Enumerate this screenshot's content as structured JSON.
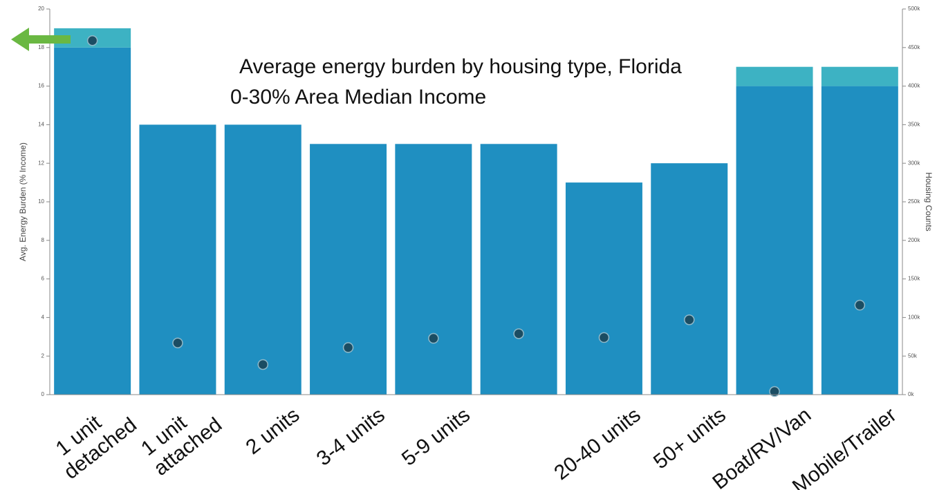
{
  "chart_data": {
    "type": "bar",
    "title": "Average energy burden by housing type, Florida",
    "subtitle": "0-30% Area Median Income",
    "y_label": "Avg. Energy Burden (% Income)",
    "y2_label": "Housing Counts",
    "categories": [
      "1 unit detached",
      "1 unit attached",
      "2 units",
      "3-4 units",
      "5-9 units",
      null,
      "20-40 units",
      "50+ units",
      "Boat/RV/Van",
      "Mobile/Trailer"
    ],
    "stacked": true,
    "series": [
      {
        "color": "#1f8fc1",
        "values": [
          18,
          14,
          14,
          13,
          13,
          13,
          11,
          12,
          16,
          16
        ]
      },
      {
        "color": "#3db2c3",
        "values": [
          1,
          0,
          0,
          0,
          0,
          0,
          0,
          0,
          1,
          1
        ]
      },
      {
        "type": "scatter",
        "axis": "y2",
        "color": "#1b4d63",
        "values": [
          459000,
          67000,
          39000,
          61000,
          73000,
          79000,
          74000,
          97000,
          4000,
          116000
        ]
      }
    ],
    "ylim": [
      0,
      20
    ],
    "yticks": [
      0,
      2,
      4,
      6,
      8,
      10,
      12,
      14,
      16,
      18,
      20
    ],
    "y2lim": [
      0,
      500000
    ],
    "y2ticks": [
      {
        "value": 0,
        "label": "0k"
      },
      {
        "value": 50000,
        "label": "50k"
      },
      {
        "value": 100000,
        "label": "100k"
      },
      {
        "value": 150000,
        "label": "150k"
      },
      {
        "value": 200000,
        "label": "200k"
      },
      {
        "value": 250000,
        "label": "250k"
      },
      {
        "value": 300000,
        "label": "300k"
      },
      {
        "value": 350000,
        "label": "350k"
      },
      {
        "value": 400000,
        "label": "400k"
      },
      {
        "value": 450000,
        "label": "450k"
      },
      {
        "value": 500000,
        "label": "500k"
      }
    ]
  }
}
